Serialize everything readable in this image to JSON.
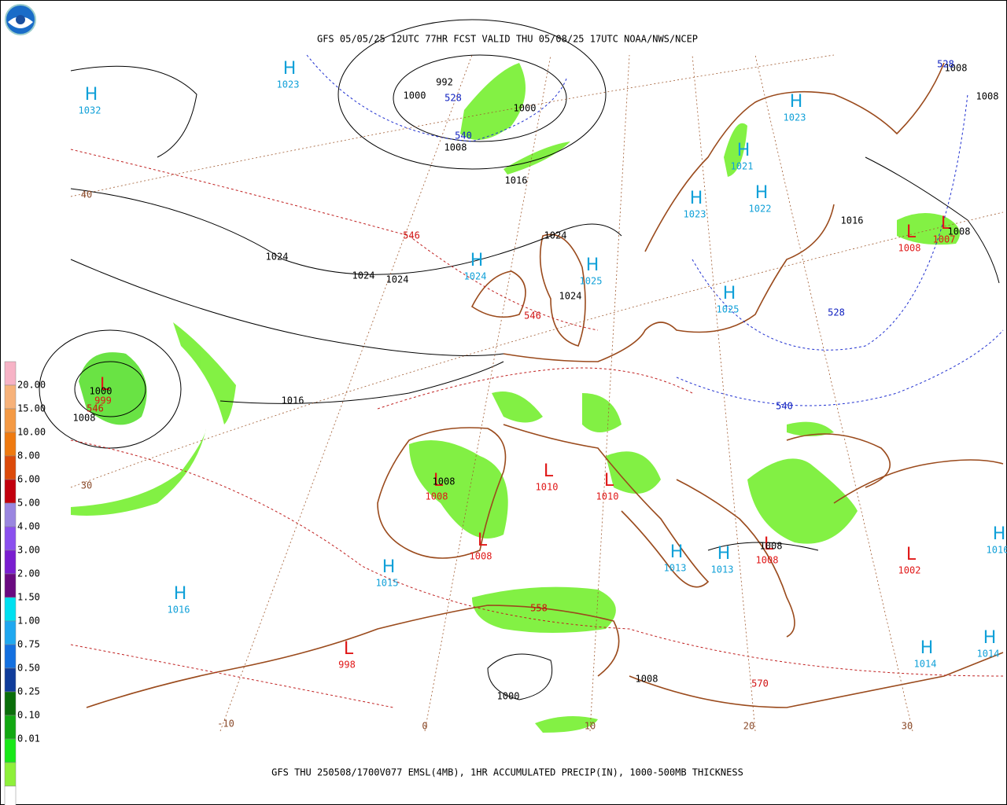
{
  "header": {
    "title": "GFS 05/05/25 12UTC 77HR FCST VALID THU 05/08/25 17UTC NOAA/NWS/NCEP"
  },
  "footer": {
    "caption": "GFS THU 250508/1700V077 EMSL(4MB), 1HR ACCUMULATED PRECIP(IN), 1000-500MB THICKNESS"
  },
  "legend": {
    "labels": [
      "20.00",
      "15.00",
      "10.00",
      "8.00",
      "6.00",
      "5.00",
      "4.00",
      "3.00",
      "2.00",
      "1.50",
      "1.00",
      "0.75",
      "0.50",
      "0.25",
      "0.10",
      "0.01"
    ],
    "colors": [
      "#f7b3c6",
      "#f7b27a",
      "#f49a45",
      "#ef7a10",
      "#dc4a0a",
      "#c2000e",
      "#9a86e0",
      "#8a50ee",
      "#7a1ed0",
      "#6a0a80",
      "#00e0f0",
      "#20a8f0",
      "#1470e0",
      "#103c9a",
      "#0a6e0a",
      "#12a812",
      "#18e818",
      "#8ef03a",
      "#ffffff"
    ]
  },
  "pressure_centers": [
    {
      "symbol": "H",
      "value": "1023"
    },
    {
      "symbol": "H",
      "value": "1032"
    },
    {
      "symbol": "H",
      "value": "1023"
    },
    {
      "symbol": "H",
      "value": "1021"
    },
    {
      "symbol": "H",
      "value": "1023"
    },
    {
      "symbol": "H",
      "value": "1022"
    },
    {
      "symbol": "H",
      "value": "1024"
    },
    {
      "symbol": "H",
      "value": "1025"
    },
    {
      "symbol": "H",
      "value": "1025"
    },
    {
      "symbol": "H",
      "value": "1015"
    },
    {
      "symbol": "H",
      "value": "1016"
    },
    {
      "symbol": "H",
      "value": "1013"
    },
    {
      "symbol": "H",
      "value": "1013"
    },
    {
      "symbol": "H",
      "value": "1014"
    },
    {
      "symbol": "H",
      "value": "1014"
    },
    {
      "symbol": "H",
      "value": "1016"
    },
    {
      "symbol": "L",
      "value": "1008"
    },
    {
      "symbol": "L",
      "value": "1007"
    },
    {
      "symbol": "L",
      "value": "999"
    },
    {
      "symbol": "L",
      "value": "1010"
    },
    {
      "symbol": "L",
      "value": "1010"
    },
    {
      "symbol": "L",
      "value": "1008"
    },
    {
      "symbol": "L",
      "value": "1008"
    },
    {
      "symbol": "L",
      "value": "1008"
    },
    {
      "symbol": "L",
      "value": "1002"
    },
    {
      "symbol": "L",
      "value": "998"
    }
  ],
  "isobar_labels": [
    "992",
    "1000",
    "1000",
    "1008",
    "1016",
    "1024",
    "1024",
    "1024",
    "1024",
    "1024",
    "1016",
    "1008",
    "1008",
    "1008",
    "1000",
    "1008",
    "1016",
    "1008",
    "1008",
    "1008",
    "1000"
  ],
  "thickness_labels_cold": [
    "528",
    "540",
    "528",
    "528",
    "540"
  ],
  "thickness_labels_warm": [
    "546",
    "546",
    "546",
    "558",
    "570"
  ],
  "grid_labels": [
    "40",
    "30",
    "-10",
    "0",
    "10",
    "20",
    "30"
  ]
}
